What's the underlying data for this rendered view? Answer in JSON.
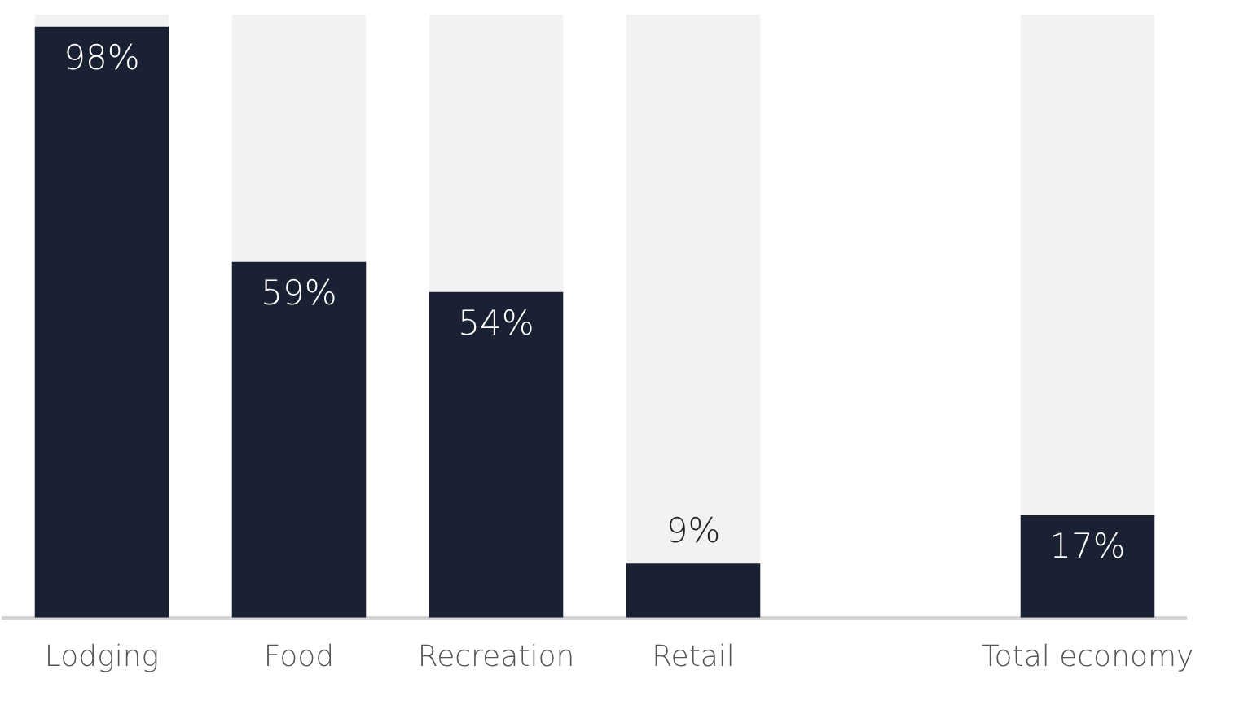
{
  "chart_data": {
    "type": "bar",
    "stacked": true,
    "categories": [
      "Lodging",
      "Food",
      "Recreation",
      "Retail",
      null,
      "Total economy"
    ],
    "series": [
      {
        "color": "#1a2133",
        "values": [
          98,
          59,
          54,
          9,
          null,
          17
        ],
        "value_labels": [
          "98%",
          "59%",
          "54%",
          "9%",
          null,
          "17%"
        ]
      },
      {
        "color": "#f2f2f2",
        "values": [
          2,
          41,
          46,
          91,
          null,
          83
        ]
      }
    ],
    "ylim": [
      0,
      100
    ],
    "tick_labels": "x",
    "grid": false,
    "legend": false
  }
}
